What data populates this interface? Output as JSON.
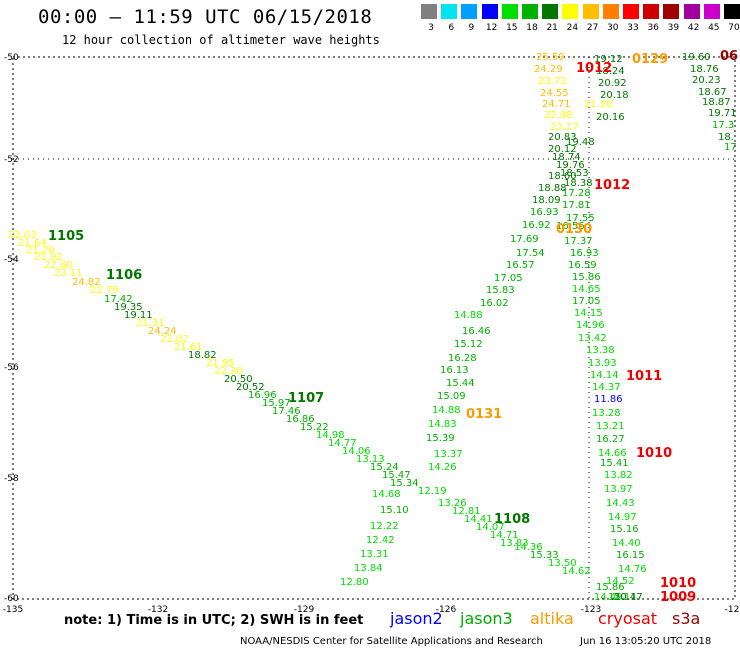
{
  "header": {
    "title": "00:00 – 11:59 UTC 06/15/2018",
    "subtitle": "12 hour collection of altimeter wave heights"
  },
  "color_scale": {
    "labels": [
      "3",
      "6",
      "9",
      "12",
      "15",
      "18",
      "21",
      "24",
      "27",
      "30",
      "33",
      "36",
      "39",
      "42",
      "45",
      "70",
      "(ft)"
    ],
    "colors": [
      "#808080",
      "#00e5ee",
      "#00a0ff",
      "#0000ff",
      "#00dd00",
      "#00b000",
      "#007700",
      "#ffff00",
      "#ffbf00",
      "#ff7f00",
      "#ff0000",
      "#cc0000",
      "#a00000",
      "#a000a0",
      "#cc00cc",
      "#000000"
    ]
  },
  "axes": {
    "x_ticks": [
      "-135",
      "-132",
      "-129",
      "-126",
      "-123",
      "-12"
    ],
    "y_ticks": [
      "-50",
      "-52",
      "-54",
      "-56",
      "-58",
      "-60"
    ]
  },
  "pressure_labels": [
    {
      "text": "1105",
      "color": "#007700"
    },
    {
      "text": "1106",
      "color": "#007700"
    },
    {
      "text": "1107",
      "color": "#007700"
    },
    {
      "text": "1108",
      "color": "#007700"
    },
    {
      "text": "0131",
      "color": "#ff9900"
    },
    {
      "text": "0130",
      "color": "#ff9900"
    },
    {
      "text": "0129",
      "color": "#ff9900"
    },
    {
      "text": "1012",
      "color": "#ee0000"
    },
    {
      "text": "1012",
      "color": "#ee0000"
    },
    {
      "text": "1011",
      "color": "#ee0000"
    },
    {
      "text": "1010",
      "color": "#ee0000"
    },
    {
      "text": "1010",
      "color": "#ee0000"
    },
    {
      "text": "1009",
      "color": "#ee0000"
    },
    {
      "text": "06",
      "color": "#990000"
    }
  ],
  "measurements": [
    [
      "22.03",
      "#ffff00"
    ],
    [
      "21.64",
      "#ffff00"
    ],
    [
      "21.20",
      "#ffff00"
    ],
    [
      "21.92",
      "#ffff00"
    ],
    [
      "22.60",
      "#ffff00"
    ],
    [
      "23.11",
      "#ffff00"
    ],
    [
      "24.82",
      "#ffbf00"
    ],
    [
      "22.79",
      "#ffff00"
    ],
    [
      "17.42",
      "#00b000"
    ],
    [
      "19.35",
      "#007700"
    ],
    [
      "19.11",
      "#007700"
    ],
    [
      "21.31",
      "#ffff00"
    ],
    [
      "24.24",
      "#ffbf00"
    ],
    [
      "22.02",
      "#ffff00"
    ],
    [
      "21.61",
      "#ffff00"
    ],
    [
      "18.82",
      "#007700"
    ],
    [
      "21.95",
      "#ffff00"
    ],
    [
      "22.30",
      "#ffff00"
    ],
    [
      "20.50",
      "#007700"
    ],
    [
      "20.52",
      "#007700"
    ],
    [
      "16.96",
      "#00b000"
    ],
    [
      "15.97",
      "#00b000"
    ],
    [
      "17.46",
      "#00b000"
    ],
    [
      "16.86",
      "#00b000"
    ],
    [
      "15.22",
      "#00b000"
    ],
    [
      "14.98",
      "#00dd00"
    ],
    [
      "14.77",
      "#00dd00"
    ],
    [
      "14.06",
      "#00dd00"
    ],
    [
      "13.13",
      "#00dd00"
    ],
    [
      "15.24",
      "#00b000"
    ],
    [
      "15.47",
      "#00b000"
    ],
    [
      "15.34",
      "#00b000"
    ],
    [
      "14.68",
      "#00dd00"
    ],
    [
      "15.10",
      "#00b000"
    ],
    [
      "12.22",
      "#00dd00"
    ],
    [
      "12.42",
      "#00dd00"
    ],
    [
      "13.31",
      "#00dd00"
    ],
    [
      "13.84",
      "#00dd00"
    ],
    [
      "12.80",
      "#00dd00"
    ],
    [
      "13.37",
      "#00dd00"
    ],
    [
      "14.26",
      "#00dd00"
    ],
    [
      "12.19",
      "#00dd00"
    ],
    [
      "13.26",
      "#00dd00"
    ],
    [
      "12.81",
      "#00dd00"
    ],
    [
      "14.41",
      "#00dd00"
    ],
    [
      "14.07",
      "#00dd00"
    ],
    [
      "14.71",
      "#00dd00"
    ],
    [
      "13.83",
      "#00dd00"
    ],
    [
      "14.36",
      "#00dd00"
    ],
    [
      "15.33",
      "#00b000"
    ],
    [
      "13.50",
      "#00dd00"
    ],
    [
      "14.62",
      "#00dd00"
    ],
    [
      "15.39",
      "#00b000"
    ],
    [
      "14.83",
      "#00dd00"
    ],
    [
      "14.88",
      "#00dd00"
    ],
    [
      "15.09",
      "#00b000"
    ],
    [
      "15.44",
      "#00b000"
    ],
    [
      "16.13",
      "#00b000"
    ],
    [
      "16.28",
      "#00b000"
    ],
    [
      "15.12",
      "#00b000"
    ],
    [
      "16.46",
      "#00b000"
    ],
    [
      "14.88",
      "#00dd00"
    ],
    [
      "16.02",
      "#00b000"
    ],
    [
      "15.83",
      "#00b000"
    ],
    [
      "17.05",
      "#00b000"
    ],
    [
      "16.57",
      "#00b000"
    ],
    [
      "17.54",
      "#00b000"
    ],
    [
      "17.69",
      "#00b000"
    ],
    [
      "16.92",
      "#00b000"
    ],
    [
      "16.93",
      "#00b000"
    ],
    [
      "18.09",
      "#007700"
    ],
    [
      "18.88",
      "#007700"
    ],
    [
      "18.60",
      "#007700"
    ],
    [
      "25.59",
      "#ffbf00"
    ],
    [
      "24.29",
      "#ffbf00"
    ],
    [
      "23.72",
      "#ffff00"
    ],
    [
      "24.55",
      "#ffbf00"
    ],
    [
      "24.71",
      "#ffbf00"
    ],
    [
      "22.98",
      "#ffff00"
    ],
    [
      "23.17",
      "#ffff00"
    ],
    [
      "21.20",
      "#ffff00"
    ],
    [
      "19.12",
      "#007700"
    ],
    [
      "18.24",
      "#007700"
    ],
    [
      "20.92",
      "#007700"
    ],
    [
      "20.18",
      "#007700"
    ],
    [
      "20.16",
      "#007700"
    ],
    [
      "20.83",
      "#007700"
    ],
    [
      "19.48",
      "#007700"
    ],
    [
      "20.12",
      "#007700"
    ],
    [
      "18.74",
      "#007700"
    ],
    [
      "19.76",
      "#007700"
    ],
    [
      "18.53",
      "#007700"
    ],
    [
      "18.38",
      "#007700"
    ],
    [
      "17.28",
      "#00b000"
    ],
    [
      "17.81",
      "#00b000"
    ],
    [
      "16.56",
      "#00b000"
    ],
    [
      "17.55",
      "#00b000"
    ],
    [
      "17.37",
      "#00b000"
    ],
    [
      "16.93",
      "#00b000"
    ],
    [
      "16.59",
      "#00b000"
    ],
    [
      "15.86",
      "#00b000"
    ],
    [
      "14.65",
      "#00dd00"
    ],
    [
      "17.05",
      "#00b000"
    ],
    [
      "14.15",
      "#00dd00"
    ],
    [
      "14.96",
      "#00dd00"
    ],
    [
      "13.42",
      "#00dd00"
    ],
    [
      "13.38",
      "#00dd00"
    ],
    [
      "13.93",
      "#00dd00"
    ],
    [
      "14.14",
      "#00dd00"
    ],
    [
      "14.37",
      "#00dd00"
    ],
    [
      "11.86",
      "#0000ff"
    ],
    [
      "13.28",
      "#00dd00"
    ],
    [
      "13.21",
      "#00dd00"
    ],
    [
      "16.27",
      "#00b000"
    ],
    [
      "14.66",
      "#00dd00"
    ],
    [
      "15.41",
      "#00b000"
    ],
    [
      "13.82",
      "#00dd00"
    ],
    [
      "13.97",
      "#00dd00"
    ],
    [
      "14.43",
      "#00dd00"
    ],
    [
      "14.97",
      "#00dd00"
    ],
    [
      "15.16",
      "#00b000"
    ],
    [
      "14.40",
      "#00dd00"
    ],
    [
      "16.15",
      "#00b000"
    ],
    [
      "14.76",
      "#00dd00"
    ],
    [
      "14.52",
      "#00dd00"
    ],
    [
      "15.86",
      "#00b000"
    ],
    [
      "14.49",
      "#00dd00"
    ],
    [
      "15.11",
      "#00b000"
    ],
    [
      "20.47",
      "#007700"
    ],
    [
      "19.60",
      "#007700"
    ],
    [
      "18.76",
      "#007700"
    ],
    [
      "20.23",
      "#007700"
    ],
    [
      "18.67",
      "#007700"
    ],
    [
      "18.87",
      "#007700"
    ],
    [
      "19.71",
      "#007700"
    ],
    [
      "17.3",
      "#00b000"
    ],
    [
      "18.",
      "#007700"
    ],
    [
      "17",
      "#00b000"
    ]
  ],
  "footer": {
    "note": "note: 1) Time is in UTC; 2) SWH is in feet",
    "satellites": [
      {
        "name": "jason2",
        "color": "#0000ff"
      },
      {
        "name": "jason3",
        "color": "#00aa00"
      },
      {
        "name": "altika",
        "color": "#ff9900"
      },
      {
        "name": "cryosat",
        "color": "#ee0000"
      },
      {
        "name": "s3a",
        "color": "#990000"
      }
    ],
    "credit": "NOAA/NESDIS Center for Satellite Applications and Research",
    "timestamp": "Jun 16 13:05:20 UTC 2018"
  }
}
